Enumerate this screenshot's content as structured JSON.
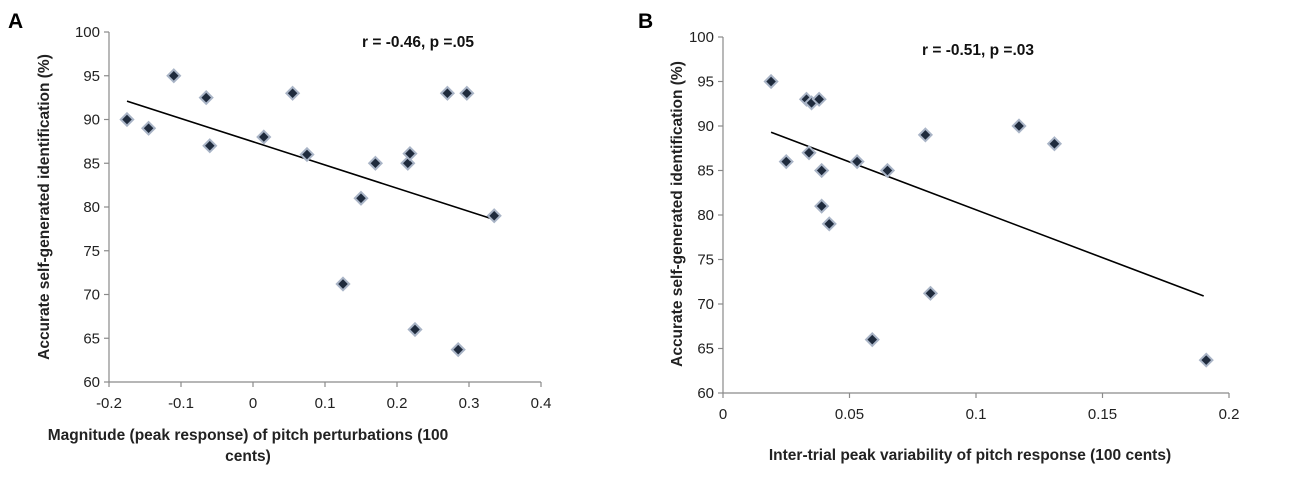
{
  "chart_data": [
    {
      "type": "scatter",
      "panel_label": "A",
      "annotation": "r = -0.46, p =.05",
      "xlabel_lines": [
        "Magnitude (peak response) of pitch perturbations (100",
        "cents)"
      ],
      "ylabel": "Accurate self-generated identification (%)",
      "xlim": [
        -0.2,
        0.4
      ],
      "ylim": [
        60,
        100
      ],
      "xticks": [
        -0.2,
        -0.1,
        0,
        0.1,
        0.2,
        0.3,
        0.4
      ],
      "xtick_labels": [
        "-0.2",
        "-0.1",
        "0",
        "0.1",
        "0.2",
        "0.3",
        "0.4"
      ],
      "yticks": [
        60,
        65,
        70,
        75,
        80,
        85,
        90,
        95,
        100
      ],
      "ytick_labels": [
        "60",
        "65",
        "70",
        "75",
        "80",
        "85",
        "90",
        "95",
        "100"
      ],
      "points": [
        {
          "x": -0.175,
          "y": 90
        },
        {
          "x": -0.145,
          "y": 89
        },
        {
          "x": -0.11,
          "y": 95
        },
        {
          "x": -0.065,
          "y": 92.5
        },
        {
          "x": -0.06,
          "y": 87
        },
        {
          "x": 0.015,
          "y": 88
        },
        {
          "x": 0.055,
          "y": 93
        },
        {
          "x": 0.075,
          "y": 86
        },
        {
          "x": 0.125,
          "y": 71.2
        },
        {
          "x": 0.15,
          "y": 81
        },
        {
          "x": 0.17,
          "y": 85
        },
        {
          "x": 0.215,
          "y": 85
        },
        {
          "x": 0.218,
          "y": 86.1
        },
        {
          "x": 0.225,
          "y": 66
        },
        {
          "x": 0.27,
          "y": 93
        },
        {
          "x": 0.285,
          "y": 63.7
        },
        {
          "x": 0.297,
          "y": 93
        },
        {
          "x": 0.335,
          "y": 79
        }
      ],
      "trendline": {
        "x": [
          -0.175,
          0.33
        ],
        "y": [
          92.1,
          78.7
        ]
      }
    },
    {
      "type": "scatter",
      "panel_label": "B",
      "annotation": "r = -0.51, p =.03",
      "xlabel_lines": [
        "Inter-trial peak variability of pitch response (100 cents)"
      ],
      "ylabel": "Accurate self-generated identification (%)",
      "xlim": [
        0,
        0.2
      ],
      "ylim": [
        60,
        100
      ],
      "xticks": [
        0,
        0.05,
        0.1,
        0.15,
        0.2
      ],
      "xtick_labels": [
        "0",
        "0.05",
        "0.1",
        "0.15",
        "0.2"
      ],
      "yticks": [
        60,
        65,
        70,
        75,
        80,
        85,
        90,
        95,
        100
      ],
      "ytick_labels": [
        "60",
        "65",
        "70",
        "75",
        "80",
        "85",
        "90",
        "95",
        "100"
      ],
      "points": [
        {
          "x": 0.019,
          "y": 95
        },
        {
          "x": 0.025,
          "y": 86
        },
        {
          "x": 0.033,
          "y": 93
        },
        {
          "x": 0.035,
          "y": 92.6
        },
        {
          "x": 0.034,
          "y": 87
        },
        {
          "x": 0.038,
          "y": 93
        },
        {
          "x": 0.039,
          "y": 85
        },
        {
          "x": 0.039,
          "y": 81
        },
        {
          "x": 0.042,
          "y": 79
        },
        {
          "x": 0.053,
          "y": 86
        },
        {
          "x": 0.059,
          "y": 66
        },
        {
          "x": 0.065,
          "y": 85
        },
        {
          "x": 0.08,
          "y": 89
        },
        {
          "x": 0.082,
          "y": 71.2
        },
        {
          "x": 0.117,
          "y": 90
        },
        {
          "x": 0.131,
          "y": 88
        },
        {
          "x": 0.191,
          "y": 63.7
        }
      ],
      "trendline": {
        "x": [
          0.019,
          0.19
        ],
        "y": [
          89.3,
          70.9
        ]
      }
    }
  ]
}
